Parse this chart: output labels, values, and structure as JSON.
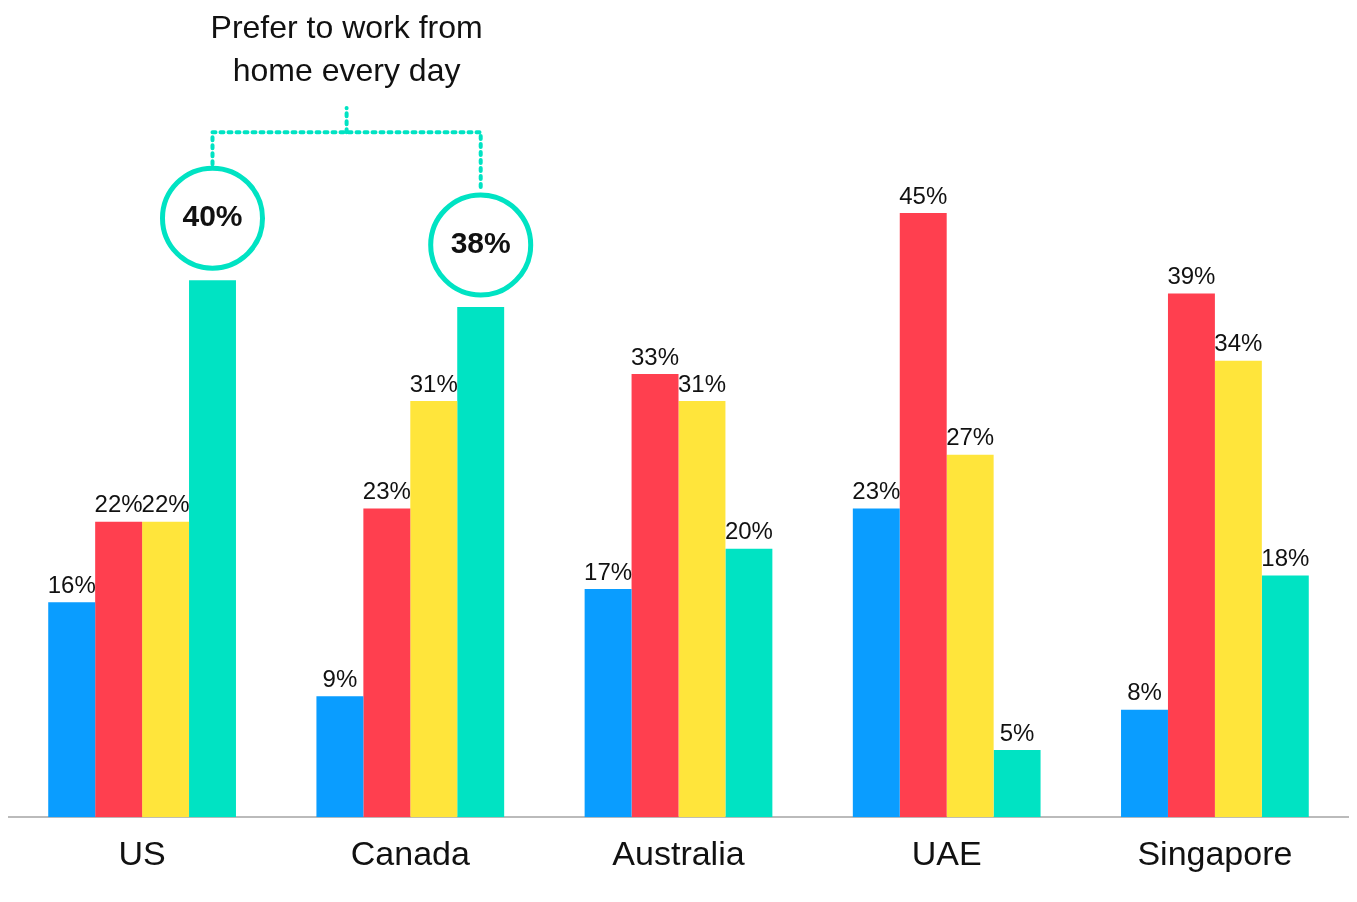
{
  "chart_data": {
    "type": "bar",
    "categories": [
      "US",
      "Canada",
      "Australia",
      "UAE",
      "Singapore"
    ],
    "series": [
      {
        "color": "#0a9dff",
        "values": [
          16,
          9,
          17,
          23,
          8
        ],
        "value_labels": [
          "16%",
          "9%",
          "17%",
          "23%",
          "8%"
        ]
      },
      {
        "color": "#ff3f4f",
        "values": [
          22,
          23,
          33,
          45,
          39
        ],
        "value_labels": [
          "22%",
          "23%",
          "33%",
          "45%",
          "39%"
        ]
      },
      {
        "color": "#ffe53b",
        "values": [
          22,
          31,
          31,
          27,
          34
        ],
        "value_labels": [
          "22%",
          "31%",
          "31%",
          "27%",
          "34%"
        ]
      },
      {
        "color": "#00e3c3",
        "values": [
          40,
          38,
          20,
          5,
          18
        ],
        "value_labels": [
          "40%",
          "38%",
          "20%",
          "5%",
          "18%"
        ]
      }
    ],
    "grid": false,
    "legend": false,
    "tick_labels": "x",
    "annotations": [
      "Prefer to work from home every day"
    ]
  }
}
